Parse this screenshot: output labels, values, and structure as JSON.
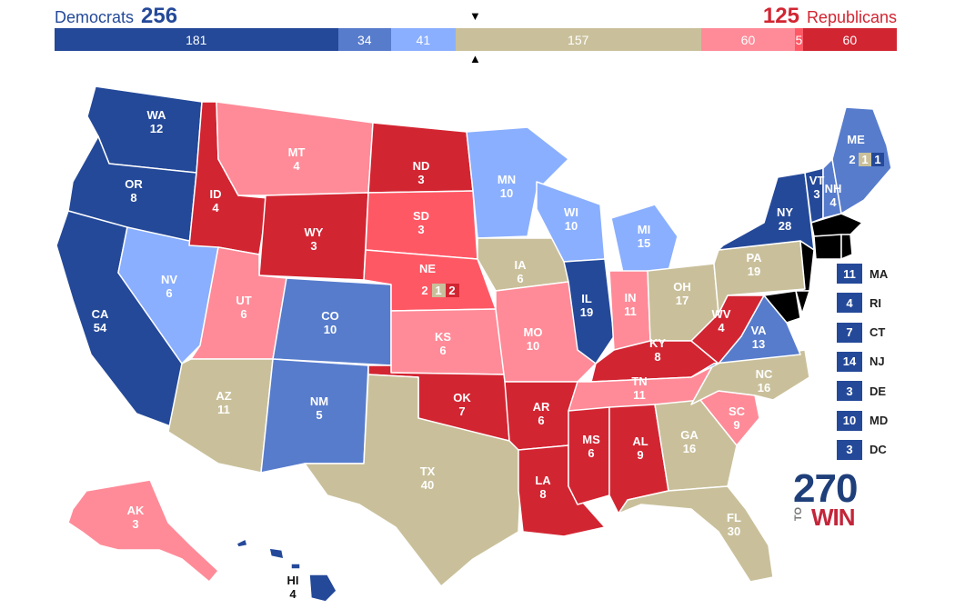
{
  "header": {
    "dem_label": "Democrats",
    "dem_total": "256",
    "rep_total": "125",
    "rep_label": "Republicans"
  },
  "colors": {
    "safe_d": "#244999",
    "likely_d": "#577ccc",
    "lean_d": "#8aafff",
    "tossup": "#c9c09b",
    "lean_r": "#ff8b98",
    "likely_r": "#ff5865",
    "safe_r": "#d22532"
  },
  "bar": [
    {
      "label": "181",
      "value": 181,
      "color": "#244999"
    },
    {
      "label": "34",
      "value": 34,
      "color": "#577ccc"
    },
    {
      "label": "41",
      "value": 41,
      "color": "#8aafff"
    },
    {
      "label": "157",
      "value": 157,
      "color": "#c9c09b"
    },
    {
      "label": "60",
      "value": 60,
      "color": "#ff8b98"
    },
    {
      "label": "5",
      "value": 5,
      "color": "#ff5865"
    },
    {
      "label": "60",
      "value": 60,
      "color": "#d22532"
    }
  ],
  "markers": {
    "top": "▼",
    "bottom": "▲"
  },
  "states": {
    "WA": {
      "name": "WA",
      "ev": "12",
      "rating": "safe_d"
    },
    "OR": {
      "name": "OR",
      "ev": "8",
      "rating": "safe_d"
    },
    "CA": {
      "name": "CA",
      "ev": "54",
      "rating": "safe_d"
    },
    "NV": {
      "name": "NV",
      "ev": "6",
      "rating": "lean_d"
    },
    "ID": {
      "name": "ID",
      "ev": "4",
      "rating": "safe_r"
    },
    "MT": {
      "name": "MT",
      "ev": "4",
      "rating": "lean_r"
    },
    "WY": {
      "name": "WY",
      "ev": "3",
      "rating": "safe_r"
    },
    "UT": {
      "name": "UT",
      "ev": "6",
      "rating": "lean_r"
    },
    "CO": {
      "name": "CO",
      "ev": "10",
      "rating": "likely_d"
    },
    "AZ": {
      "name": "AZ",
      "ev": "11",
      "rating": "tossup"
    },
    "NM": {
      "name": "NM",
      "ev": "5",
      "rating": "likely_d"
    },
    "ND": {
      "name": "ND",
      "ev": "3",
      "rating": "safe_r"
    },
    "SD": {
      "name": "SD",
      "ev": "3",
      "rating": "likely_r"
    },
    "NE": {
      "name": "NE",
      "ev": "",
      "rating": "likely_r"
    },
    "KS": {
      "name": "KS",
      "ev": "6",
      "rating": "lean_r"
    },
    "OK": {
      "name": "OK",
      "ev": "7",
      "rating": "safe_r"
    },
    "TX": {
      "name": "TX",
      "ev": "40",
      "rating": "tossup"
    },
    "MN": {
      "name": "MN",
      "ev": "10",
      "rating": "lean_d"
    },
    "IA": {
      "name": "IA",
      "ev": "6",
      "rating": "tossup"
    },
    "MO": {
      "name": "MO",
      "ev": "10",
      "rating": "lean_r"
    },
    "AR": {
      "name": "AR",
      "ev": "6",
      "rating": "safe_r"
    },
    "LA": {
      "name": "LA",
      "ev": "8",
      "rating": "safe_r"
    },
    "WI": {
      "name": "WI",
      "ev": "10",
      "rating": "lean_d"
    },
    "IL": {
      "name": "IL",
      "ev": "19",
      "rating": "safe_d"
    },
    "MI": {
      "name": "MI",
      "ev": "15",
      "rating": "lean_d"
    },
    "IN": {
      "name": "IN",
      "ev": "11",
      "rating": "lean_r"
    },
    "OH": {
      "name": "OH",
      "ev": "17",
      "rating": "tossup"
    },
    "KY": {
      "name": "KY",
      "ev": "8",
      "rating": "safe_r"
    },
    "TN": {
      "name": "TN",
      "ev": "11",
      "rating": "lean_r"
    },
    "MS": {
      "name": "MS",
      "ev": "6",
      "rating": "safe_r"
    },
    "AL": {
      "name": "AL",
      "ev": "9",
      "rating": "safe_r"
    },
    "GA": {
      "name": "GA",
      "ev": "16",
      "rating": "tossup"
    },
    "FL": {
      "name": "FL",
      "ev": "30",
      "rating": "tossup"
    },
    "SC": {
      "name": "SC",
      "ev": "9",
      "rating": "lean_r"
    },
    "NC": {
      "name": "NC",
      "ev": "16",
      "rating": "tossup"
    },
    "VA": {
      "name": "VA",
      "ev": "13",
      "rating": "likely_d"
    },
    "WV": {
      "name": "WV",
      "ev": "4",
      "rating": "safe_r"
    },
    "PA": {
      "name": "PA",
      "ev": "19",
      "rating": "tossup"
    },
    "NY": {
      "name": "NY",
      "ev": "28",
      "rating": "safe_d"
    },
    "VT": {
      "name": "VT",
      "ev": "3",
      "rating": "safe_d"
    },
    "NH": {
      "name": "NH",
      "ev": "4",
      "rating": "likely_d"
    },
    "ME": {
      "name": "ME",
      "ev": "",
      "rating": "likely_d"
    },
    "AK": {
      "name": "AK",
      "ev": "3",
      "rating": "lean_r"
    },
    "HI": {
      "name": "HI",
      "ev": "4",
      "rating": "safe_d"
    },
    "NE_split": [
      "2",
      "1",
      "2"
    ],
    "ME_split": [
      "2",
      "1",
      "1"
    ]
  },
  "small_states": [
    {
      "ev": "11",
      "name": "MA"
    },
    {
      "ev": "4",
      "name": "RI"
    },
    {
      "ev": "7",
      "name": "CT"
    },
    {
      "ev": "14",
      "name": "NJ"
    },
    {
      "ev": "3",
      "name": "DE"
    },
    {
      "ev": "10",
      "name": "MD"
    },
    {
      "ev": "3",
      "name": "DC"
    }
  ],
  "logo": {
    "number": "270",
    "to": "TO",
    "win": "WIN"
  }
}
